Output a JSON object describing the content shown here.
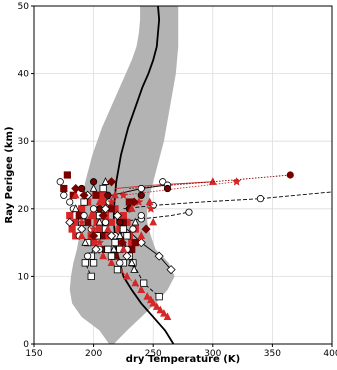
{
  "chart_data": {
    "type": "scatter",
    "title": "",
    "xlabel": "dry Temperature (K)",
    "ylabel": "Ray Perigee (km)",
    "xlim": [
      150,
      400
    ],
    "ylim": [
      0,
      50
    ],
    "xticks": [
      "150",
      "200",
      "250",
      "300",
      "350",
      "400"
    ],
    "xtick_values": [
      150,
      200,
      250,
      300,
      350,
      400
    ],
    "yticks": [
      "0",
      "10",
      "20",
      "30",
      "40",
      "50"
    ],
    "ytick_values": [
      0,
      10,
      20,
      30,
      40,
      50
    ],
    "grid": true,
    "legend": "none",
    "colors": {
      "band": "#b3b3b3",
      "mean": "#000000",
      "red": "#d62728",
      "darkred": "#7a0000",
      "white": "#ffffff",
      "grid": "#dddddd",
      "dashed": "#000000"
    },
    "band": {
      "upper": [
        [
          217,
          0
        ],
        [
          228,
          2
        ],
        [
          240,
          4
        ],
        [
          252,
          6
        ],
        [
          262,
          8
        ],
        [
          268,
          10
        ],
        [
          263,
          12
        ],
        [
          252,
          14
        ],
        [
          248,
          16
        ],
        [
          245,
          18
        ],
        [
          245,
          20
        ],
        [
          247,
          22
        ],
        [
          250,
          24
        ],
        [
          253,
          26
        ],
        [
          256,
          28
        ],
        [
          259,
          30
        ],
        [
          261,
          32
        ],
        [
          263,
          34
        ],
        [
          265,
          36
        ],
        [
          267,
          38
        ],
        [
          269,
          40
        ],
        [
          270,
          42
        ],
        [
          271,
          44
        ],
        [
          271,
          46
        ],
        [
          271,
          48
        ],
        [
          271,
          50
        ]
      ],
      "lower": [
        [
          213,
          0
        ],
        [
          205,
          2
        ],
        [
          190,
          4
        ],
        [
          182,
          6
        ],
        [
          180,
          8
        ],
        [
          181,
          10
        ],
        [
          183,
          12
        ],
        [
          186,
          14
        ],
        [
          188,
          16
        ],
        [
          188,
          18
        ],
        [
          189,
          20
        ],
        [
          191,
          22
        ],
        [
          193,
          24
        ],
        [
          196,
          26
        ],
        [
          199,
          28
        ],
        [
          203,
          30
        ],
        [
          207,
          32
        ],
        [
          212,
          34
        ],
        [
          217,
          36
        ],
        [
          222,
          38
        ],
        [
          227,
          40
        ],
        [
          232,
          42
        ],
        [
          236,
          44
        ],
        [
          238,
          46
        ],
        [
          239,
          48
        ],
        [
          239,
          50
        ]
      ]
    },
    "mean_profile": [
      [
        267,
        0
      ],
      [
        260,
        2
      ],
      [
        250,
        4
      ],
      [
        240,
        6
      ],
      [
        232,
        8
      ],
      [
        225,
        10
      ],
      [
        222,
        12
      ],
      [
        219,
        14
      ],
      [
        218,
        16
      ],
      [
        217,
        18
      ],
      [
        217,
        20
      ],
      [
        218,
        22
      ],
      [
        219,
        24
      ],
      [
        221,
        26
      ],
      [
        223,
        28
      ],
      [
        226,
        30
      ],
      [
        229,
        32
      ],
      [
        233,
        34
      ],
      [
        237,
        36
      ],
      [
        241,
        38
      ],
      [
        246,
        40
      ],
      [
        250,
        42
      ],
      [
        253,
        44
      ],
      [
        254,
        46
      ],
      [
        255,
        48
      ],
      [
        254,
        50
      ]
    ],
    "series": [
      {
        "style": "dashed-black-open-square",
        "line": [
          [
            215,
            21
          ],
          [
            218,
            19
          ],
          [
            222,
            17
          ],
          [
            226,
            15
          ],
          [
            233,
            12
          ],
          [
            242,
            9
          ],
          [
            255,
            7
          ]
        ],
        "markers": [
          [
            233,
            12
          ],
          [
            242,
            9
          ],
          [
            255,
            7
          ]
        ]
      },
      {
        "style": "dashed-black-open-circle",
        "line": [
          [
            225,
            20
          ],
          [
            250,
            20.5
          ],
          [
            290,
            21
          ],
          [
            340,
            21.5
          ],
          [
            400,
            22.5
          ]
        ],
        "markers": [
          [
            250,
            20.5
          ],
          [
            340,
            21.5
          ]
        ]
      },
      {
        "style": "dashed-black-open-circle",
        "line": [
          [
            220,
            18
          ],
          [
            240,
            18.5
          ],
          [
            265,
            19
          ],
          [
            280,
            19.5
          ]
        ],
        "markers": [
          [
            240,
            18.5
          ],
          [
            280,
            19.5
          ]
        ]
      },
      {
        "style": "solid-black-open-diamond",
        "line": [
          [
            228,
            17
          ],
          [
            240,
            15
          ],
          [
            255,
            13
          ],
          [
            265,
            11
          ]
        ],
        "markers": [
          [
            240,
            15
          ],
          [
            255,
            13
          ],
          [
            265,
            11
          ]
        ]
      },
      {
        "style": "solid-black-open-triangle",
        "line": [
          [
            225,
            15
          ],
          [
            230,
            13
          ],
          [
            234,
            11
          ]
        ],
        "markers": [
          [
            230,
            13
          ],
          [
            234,
            11
          ]
        ]
      },
      {
        "style": "dashed-black-open-square",
        "line": [
          [
            200,
            14
          ],
          [
            193,
            12
          ],
          [
            198,
            10
          ]
        ],
        "markers": [
          [
            193,
            12
          ],
          [
            198,
            10
          ]
        ]
      },
      {
        "style": "solid-red-triangle",
        "line": [
          [
            218,
            23
          ],
          [
            250,
            23.5
          ],
          [
            300,
            24
          ]
        ],
        "markers": [
          [
            300,
            24
          ]
        ]
      },
      {
        "style": "dotted-red-star",
        "line": [
          [
            225,
            22
          ],
          [
            270,
            23
          ],
          [
            320,
            24
          ]
        ],
        "markers": [
          [
            320,
            24
          ]
        ]
      },
      {
        "style": "dotted-darkred-circle",
        "line": [
          [
            230,
            23
          ],
          [
            300,
            24
          ],
          [
            365,
            25
          ]
        ],
        "markers": [
          [
            365,
            25
          ]
        ]
      },
      {
        "style": "solid-black-open-circle",
        "line": [
          [
            215,
            22
          ],
          [
            240,
            23
          ],
          [
            260,
            23.5
          ]
        ],
        "markers": [
          [
            240,
            23
          ],
          [
            258,
            24
          ],
          [
            262,
            23.5
          ]
        ]
      },
      {
        "style": "dotted-red-triangle",
        "line": [
          [
            200,
            14
          ],
          [
            215,
            12
          ],
          [
            228,
            10
          ],
          [
            240,
            8
          ],
          [
            247,
            7
          ],
          [
            252,
            6
          ],
          [
            257,
            5
          ],
          [
            262,
            4
          ]
        ],
        "markers": [
          [
            208,
            13
          ],
          [
            215,
            12
          ],
          [
            222,
            11
          ],
          [
            228,
            10
          ],
          [
            235,
            9
          ],
          [
            240,
            8
          ],
          [
            245,
            7
          ],
          [
            248,
            6.5
          ],
          [
            250,
            6
          ],
          [
            253,
            5.5
          ],
          [
            256,
            5
          ],
          [
            259,
            4.5
          ],
          [
            262,
            4
          ]
        ]
      }
    ],
    "scatter": {
      "red_squares": [
        [
          180,
          19
        ],
        [
          185,
          18
        ],
        [
          182,
          17
        ],
        [
          185,
          16
        ],
        [
          190,
          20
        ],
        [
          195,
          21
        ],
        [
          198,
          16
        ],
        [
          200,
          19
        ],
        [
          203,
          18
        ],
        [
          205,
          17
        ],
        [
          200,
          15
        ],
        [
          208,
          21
        ],
        [
          210,
          19
        ],
        [
          212,
          16
        ],
        [
          215,
          18
        ],
        [
          218,
          20
        ],
        [
          222,
          17
        ],
        [
          225,
          19
        ],
        [
          230,
          16
        ],
        [
          232,
          15
        ],
        [
          228,
          18
        ],
        [
          235,
          17
        ],
        [
          220,
          15
        ],
        [
          207,
          22
        ]
      ],
      "darkred_squares": [
        [
          178,
          25
        ],
        [
          175,
          23
        ],
        [
          183,
          22
        ],
        [
          188,
          19
        ],
        [
          195,
          18
        ],
        [
          202,
          22
        ],
        [
          207,
          16
        ],
        [
          210,
          14
        ],
        [
          215,
          20
        ],
        [
          218,
          13
        ],
        [
          225,
          18
        ],
        [
          232,
          14
        ],
        [
          235,
          15
        ],
        [
          230,
          21
        ]
      ],
      "darkred_circles": [
        [
          190,
          23
        ],
        [
          200,
          24
        ],
        [
          205,
          20
        ],
        [
          212,
          22
        ],
        [
          222,
          18
        ],
        [
          230,
          20
        ],
        [
          240,
          22
        ],
        [
          262,
          23
        ]
      ],
      "white_squares": [
        [
          190,
          18
        ],
        [
          192,
          21
        ],
        [
          195,
          15
        ],
        [
          198,
          13
        ],
        [
          200,
          12
        ],
        [
          203,
          16
        ],
        [
          205,
          19
        ],
        [
          208,
          23
        ],
        [
          210,
          17
        ],
        [
          212,
          14
        ],
        [
          215,
          13
        ],
        [
          218,
          15
        ],
        [
          220,
          11
        ],
        [
          222,
          14
        ],
        [
          225,
          12
        ],
        [
          228,
          16
        ],
        [
          230,
          13
        ],
        [
          225,
          17
        ]
      ],
      "white_circles": [
        [
          172,
          24
        ],
        [
          175,
          22
        ],
        [
          180,
          21
        ],
        [
          183,
          20
        ],
        [
          188,
          16
        ],
        [
          192,
          19
        ],
        [
          195,
          13
        ],
        [
          198,
          17
        ],
        [
          200,
          20
        ],
        [
          205,
          14
        ],
        [
          210,
          18
        ],
        [
          213,
          21
        ],
        [
          218,
          16
        ],
        [
          222,
          12
        ],
        [
          228,
          14
        ],
        [
          233,
          17
        ],
        [
          240,
          19
        ]
      ],
      "white_diamonds": [
        [
          180,
          18
        ],
        [
          190,
          17
        ],
        [
          195,
          22
        ],
        [
          202,
          14
        ],
        [
          210,
          20
        ],
        [
          215,
          16
        ],
        [
          220,
          19
        ],
        [
          228,
          13
        ]
      ],
      "white_triangles": [
        [
          185,
          20
        ],
        [
          193,
          15
        ],
        [
          200,
          23
        ],
        [
          205,
          18
        ],
        [
          210,
          24
        ],
        [
          217,
          14
        ],
        [
          222,
          16
        ],
        [
          232,
          12
        ],
        [
          235,
          18
        ]
      ],
      "red_triangles": [
        [
          185,
          22
        ],
        [
          190,
          16
        ],
        [
          198,
          19
        ],
        [
          205,
          21
        ],
        [
          212,
          17
        ],
        [
          218,
          22
        ],
        [
          225,
          14
        ],
        [
          232,
          20
        ],
        [
          240,
          16
        ],
        [
          250,
          18
        ],
        [
          247,
          21
        ]
      ],
      "red_stars": [
        [
          190,
          18
        ],
        [
          200,
          17
        ],
        [
          205,
          15
        ],
        [
          215,
          21
        ],
        [
          225,
          22
        ],
        [
          238,
          21
        ],
        [
          248,
          20
        ]
      ],
      "darkred_diamonds": [
        [
          185,
          23
        ],
        [
          192,
          22
        ],
        [
          200,
          16
        ],
        [
          208,
          19
        ],
        [
          215,
          24
        ],
        [
          224,
          15
        ],
        [
          234,
          21
        ],
        [
          244,
          17
        ]
      ]
    }
  }
}
